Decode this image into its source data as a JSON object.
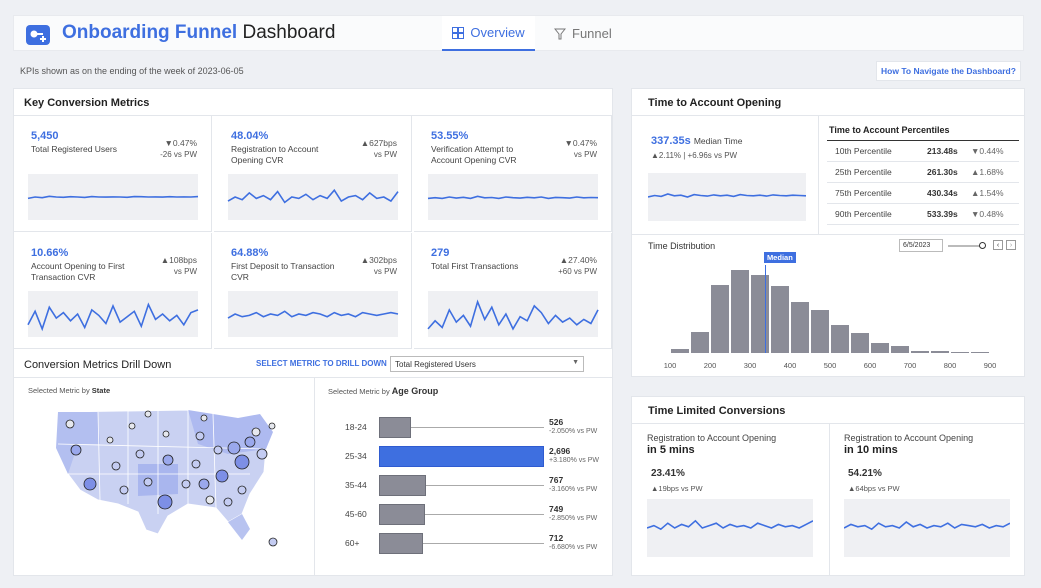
{
  "header": {
    "title_main": "Onboarding Funnel",
    "title_rest": "Dashboard",
    "tabs": [
      {
        "label": "Overview"
      },
      {
        "label": "Funnel"
      }
    ]
  },
  "subheader": {
    "note": "KPIs shown as on the ending of the week of 2023-06-05",
    "help_link": "How To Navigate the Dashboard?"
  },
  "key_metrics": {
    "title": "Key Conversion Metrics",
    "kpis": [
      {
        "value": "5,450",
        "label": "Total Registered Users",
        "delta": "▼0.47%",
        "sub": "-26 vs PW",
        "spark": [
          5.2,
          5.3,
          5.25,
          5.35,
          5.3,
          5.28,
          5.32,
          5.3,
          5.27,
          5.33,
          5.3,
          5.29,
          5.31,
          5.3,
          5.28,
          5.33,
          5.32,
          5.3,
          5.31,
          5.29,
          5.32,
          5.3,
          5.31,
          5.3,
          5.33
        ]
      },
      {
        "value": "48.04%",
        "label": "Registration to Account Opening CVR",
        "delta": "▲627bps",
        "sub": "vs PW",
        "spark": [
          5,
          5.3,
          5.1,
          5.6,
          5.2,
          5.4,
          5.1,
          5.7,
          4.9,
          5.3,
          5.2,
          5.5,
          5.1,
          5.4,
          5.2,
          5.8,
          5.0,
          5.3,
          5.4,
          5.1,
          5.6,
          5.2,
          5.3,
          5.0,
          5.7
        ]
      },
      {
        "value": "53.55%",
        "label": "Verification Attempt to Account Opening CVR",
        "delta": "▼0.47%",
        "sub": "vs PW",
        "spark": [
          5.2,
          5.25,
          5.2,
          5.3,
          5.22,
          5.28,
          5.2,
          5.35,
          5.24,
          5.26,
          5.2,
          5.3,
          5.25,
          5.22,
          5.28,
          5.24,
          5.3,
          5.2,
          5.27,
          5.25,
          5.22,
          5.3,
          5.24,
          5.26,
          5.25
        ]
      },
      {
        "value": "10.66%",
        "label": "Account Opening to First Transaction CVR",
        "delta": "▲108bps",
        "sub": "vs PW",
        "spark": [
          4.5,
          5.5,
          4.2,
          5.8,
          5.0,
          5.4,
          4.8,
          5.3,
          4.3,
          5.6,
          5.2,
          4.6,
          5.9,
          4.7,
          5.1,
          5.5,
          4.4,
          6.0,
          4.9,
          5.3,
          4.8,
          5.2,
          4.5,
          5.4,
          5.6
        ]
      },
      {
        "value": "64.88%",
        "label": "First Deposit to Transaction CVR",
        "delta": "▲302bps",
        "sub": "vs PW",
        "spark": [
          5.0,
          5.3,
          5.1,
          5.2,
          5.4,
          5.1,
          5.3,
          5.2,
          5.5,
          5.1,
          5.3,
          5.2,
          5.4,
          5.3,
          5.1,
          5.4,
          5.2,
          5.3,
          5.1,
          5.4,
          5.3,
          5.2,
          5.3,
          5.4,
          5.3
        ]
      },
      {
        "value": "279",
        "label": "Total First Transactions",
        "delta": "▲27.40%",
        "sub": "+60 vs PW",
        "spark": [
          4.2,
          4.8,
          4.3,
          5.6,
          4.7,
          5.2,
          4.4,
          6.2,
          4.9,
          5.8,
          4.5,
          5.3,
          4.2,
          5.1,
          4.8,
          5.9,
          5.4,
          4.6,
          5.2,
          4.7,
          5.0,
          4.5,
          4.9,
          4.6,
          5.6
        ]
      }
    ]
  },
  "drill": {
    "title": "Conversion Metrics Drill Down",
    "select_label": "SELECT METRIC TO DRILL DOWN",
    "select_value": "Total Registered Users",
    "state_caption_prefix": "Selected Metric by ",
    "state_caption_bold": "State",
    "age_caption_prefix": "Selected Metric by ",
    "age_caption_bold": "Age Group",
    "age_groups": [
      {
        "label": "18-24",
        "value": 526,
        "display": "526",
        "sub": "-2.050% vs PW",
        "highlight": false
      },
      {
        "label": "25-34",
        "value": 2696,
        "display": "2,696",
        "sub": "+3.180% vs PW",
        "highlight": true
      },
      {
        "label": "35-44",
        "value": 767,
        "display": "767",
        "sub": "-3.160% vs PW",
        "highlight": false
      },
      {
        "label": "45-60",
        "value": 749,
        "display": "749",
        "sub": "-2.850% vs PW",
        "highlight": false
      },
      {
        "label": "60+",
        "value": 712,
        "display": "712",
        "sub": "-6.680% vs PW",
        "highlight": false
      }
    ]
  },
  "time_to_open": {
    "title": "Time to Account Opening",
    "median_value": "337.35s",
    "median_label": "Median Time",
    "median_delta": "▲2.11% | +6.96s vs PW",
    "spark": [
      5.2,
      5.25,
      5.22,
      5.3,
      5.24,
      5.26,
      5.2,
      5.28,
      5.25,
      5.23,
      5.27,
      5.24,
      5.26,
      5.22,
      5.28,
      5.25,
      5.24,
      5.26,
      5.23,
      5.27,
      5.25,
      5.24,
      5.26,
      5.25,
      5.24
    ],
    "percentiles_title": "Time to Account Percentiles",
    "percentiles": [
      {
        "label": "10th Percentile",
        "value": "213.48s",
        "delta": "▼0.44%"
      },
      {
        "label": "25th Percentile",
        "value": "261.30s",
        "delta": "▲1.68%"
      },
      {
        "label": "75th Percentile",
        "value": "430.34s",
        "delta": "▲1.54%"
      },
      {
        "label": "90th Percentile",
        "value": "533.39s",
        "delta": "▼0.48%"
      }
    ],
    "distribution_title": "Time Distribution",
    "date": "6/5/2023",
    "median_tag": "Median",
    "chart_data": {
      "type": "bar",
      "title": "Time Distribution",
      "bin_starts": [
        100,
        150,
        200,
        250,
        300,
        350,
        400,
        450,
        500,
        550,
        600,
        650,
        700,
        750,
        800,
        850
      ],
      "bin_width": 50,
      "values": [
        3,
        17,
        56,
        68,
        64,
        55,
        42,
        35,
        23,
        16,
        8,
        6,
        2,
        2,
        1,
        1
      ],
      "ymax": 72,
      "median": 337.35,
      "x_ticks": [
        "100",
        "200",
        "300",
        "400",
        "500",
        "600",
        "700",
        "800",
        "900"
      ],
      "x_range": [
        100,
        900
      ]
    }
  },
  "time_limited": {
    "title": "Time Limited Conversions",
    "items": [
      {
        "label": "Registration to Account Opening",
        "bold": "in 5 mins",
        "value": "23.41%",
        "delta": "▲19bps vs PW",
        "spark": [
          5.2,
          5.3,
          5.15,
          5.4,
          5.2,
          5.35,
          5.25,
          5.5,
          5.2,
          5.3,
          5.4,
          5.2,
          5.35,
          5.25,
          5.3,
          5.2,
          5.4,
          5.3,
          5.2,
          5.35,
          5.25,
          5.3,
          5.2,
          5.35,
          5.5
        ]
      },
      {
        "label": "Registration to Account Opening",
        "bold": "in 10 mins",
        "value": "54.21%",
        "delta": "▲64bps vs PW",
        "spark": [
          5.2,
          5.35,
          5.25,
          5.3,
          5.15,
          5.4,
          5.25,
          5.3,
          5.2,
          5.45,
          5.25,
          5.35,
          5.2,
          5.3,
          5.25,
          5.4,
          5.2,
          5.35,
          5.3,
          5.25,
          5.35,
          5.2,
          5.3,
          5.25,
          5.4
        ]
      }
    ]
  },
  "colors": {
    "accent": "#3e6fe0",
    "bar": "#8b8c97"
  }
}
